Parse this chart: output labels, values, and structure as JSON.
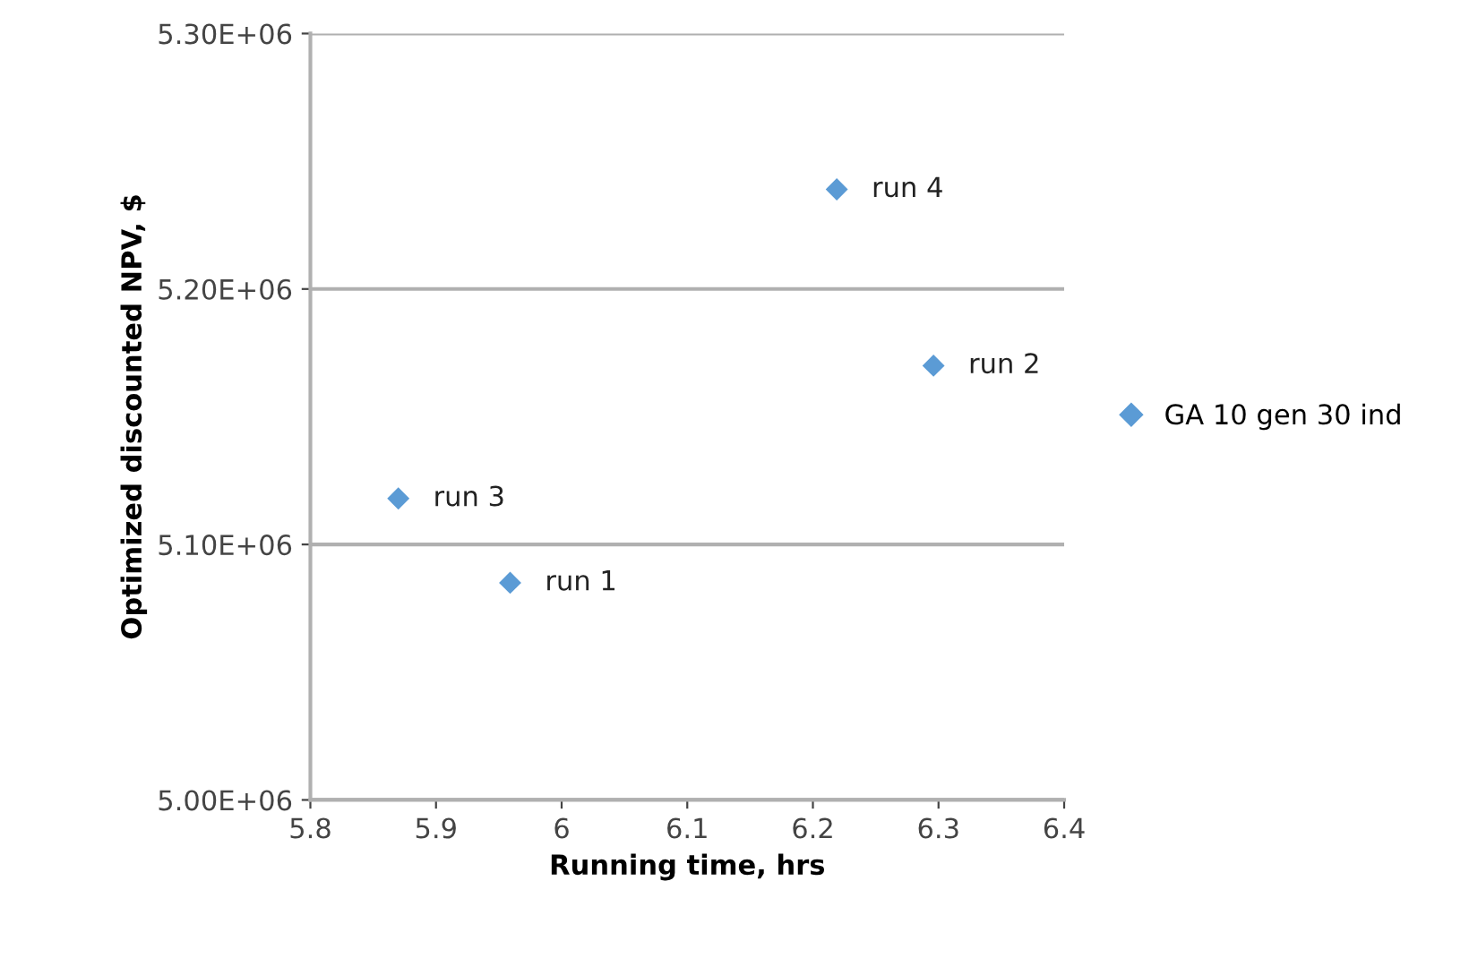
{
  "chart_data": {
    "type": "scatter",
    "xlabel": "Running time, hrs",
    "ylabel": "Optimized discounted NPV, $",
    "x": [
      5.959,
      6.296,
      5.87,
      6.219
    ],
    "series": [
      {
        "name": "GA 10 gen 30 ind",
        "color": "#5b9bd5",
        "values": [
          5085000,
          5170000,
          5118000,
          5239000
        ]
      }
    ],
    "annotations": [
      {
        "text": "run 1",
        "x": 5.959,
        "y": 5085000
      },
      {
        "text": "run 2",
        "x": 6.296,
        "y": 5170000
      },
      {
        "text": "run 3",
        "x": 5.87,
        "y": 5118000
      },
      {
        "text": "run 4",
        "x": 6.219,
        "y": 5239000
      }
    ],
    "xlim": [
      5.8,
      6.4
    ],
    "xticks": [
      5.8,
      5.9,
      6,
      6.1,
      6.2,
      6.3,
      6.4
    ],
    "ylim": [
      5000000,
      5300000
    ],
    "yticks": [
      {
        "value": 5000000,
        "label": "5.00E+06"
      },
      {
        "value": 5100000,
        "label": "5.10E+06"
      },
      {
        "value": 5200000,
        "label": "5.20E+06"
      },
      {
        "value": 5300000,
        "label": "5.30E+06"
      }
    ],
    "grid": "y",
    "legend": "right",
    "marker": "diamond"
  }
}
